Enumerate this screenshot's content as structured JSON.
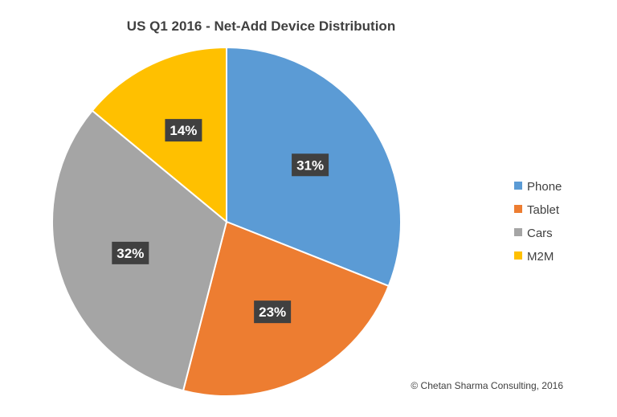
{
  "chart_data": {
    "type": "pie",
    "title": "US Q1 2016 - Net-Add Device Distribution",
    "categories": [
      "Phone",
      "Tablet",
      "Cars",
      "M2M"
    ],
    "values": [
      31,
      23,
      32,
      14
    ],
    "labels": [
      "31%",
      "23%",
      "32%",
      "14%"
    ],
    "colors": [
      "#5B9BD5",
      "#ED7D31",
      "#A5A5A5",
      "#FFC000"
    ],
    "legend_position": "right",
    "start_angle": "12 o'clock",
    "direction": "clockwise",
    "label_box_color": "#404040"
  },
  "footer": {
    "copyright": "© Chetan Sharma Consulting, 2016"
  }
}
